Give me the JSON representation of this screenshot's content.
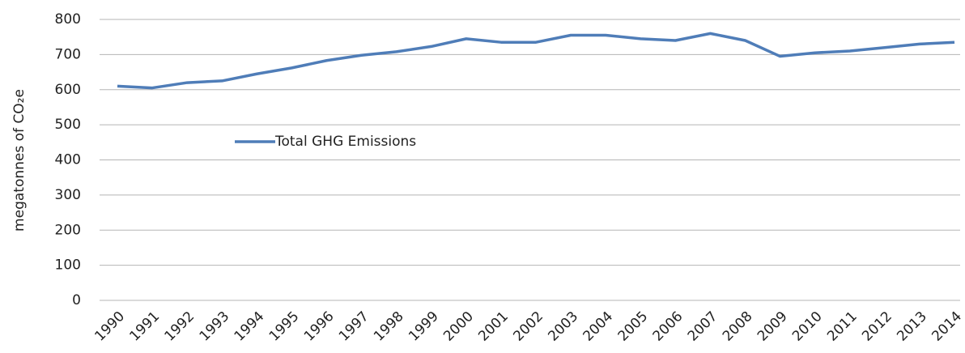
{
  "chart_data": {
    "type": "line",
    "y_label": "megatonnes of CO₂e",
    "categories": [
      "1990",
      "1991",
      "1992",
      "1993",
      "1994",
      "1995",
      "1996",
      "1997",
      "1998",
      "1999",
      "2000",
      "2001",
      "2002",
      "2003",
      "2004",
      "2005",
      "2006",
      "2007",
      "2008",
      "2009",
      "2010",
      "2011",
      "2012",
      "2013",
      "2014"
    ],
    "series": [
      {
        "name": "Total GHG Emissions",
        "color": "#4f7db8",
        "values": [
          610,
          605,
          620,
          625,
          645,
          662,
          683,
          698,
          708,
          723,
          745,
          735,
          735,
          755,
          755,
          745,
          740,
          760,
          740,
          695,
          705,
          710,
          720,
          730,
          735
        ]
      }
    ],
    "ylim": [
      0,
      800
    ],
    "yticks": [
      0,
      100,
      200,
      300,
      400,
      500,
      600,
      700,
      800
    ],
    "grid": true,
    "legend": "center-left"
  }
}
